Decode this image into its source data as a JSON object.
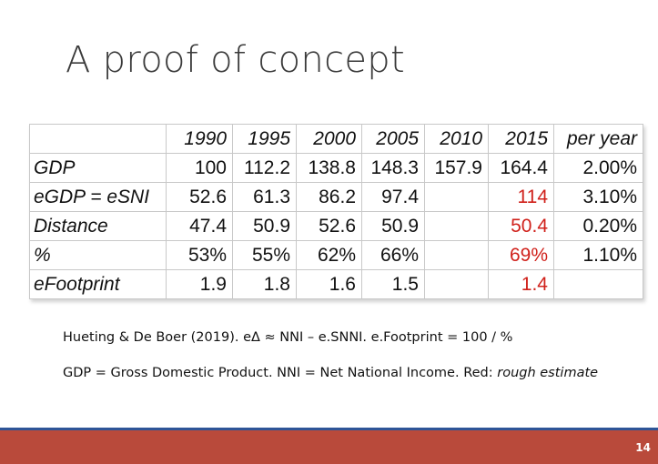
{
  "slide": {
    "title": "A proof of concept",
    "page_number": "14"
  },
  "table": {
    "header": [
      "",
      "1990",
      "1995",
      "2000",
      "2005",
      "2010",
      "2015",
      "per year"
    ],
    "rows": [
      {
        "label": "GDP",
        "cells": [
          "100",
          "112.2",
          "138.8",
          "148.3",
          "157.9",
          "164.4",
          "2.00%"
        ],
        "estimate": [
          false,
          false,
          false,
          false,
          false,
          false,
          false
        ]
      },
      {
        "label": "eGDP = eSNI",
        "cells": [
          "52.6",
          "61.3",
          "86.2",
          "97.4",
          "",
          "114",
          "3.10%"
        ],
        "estimate": [
          false,
          false,
          false,
          false,
          false,
          true,
          false
        ]
      },
      {
        "label": "Distance",
        "cells": [
          "47.4",
          "50.9",
          "52.6",
          "50.9",
          "",
          "50.4",
          "0.20%"
        ],
        "estimate": [
          false,
          false,
          false,
          false,
          false,
          true,
          false
        ]
      },
      {
        "label": "%",
        "cells": [
          "53%",
          "55%",
          "62%",
          "66%",
          "",
          "69%",
          "1.10%"
        ],
        "estimate": [
          false,
          false,
          false,
          false,
          false,
          true,
          false
        ]
      },
      {
        "label": "eFootprint",
        "cells": [
          "1.9",
          "1.8",
          "1.6",
          "1.5",
          "",
          "1.4",
          ""
        ],
        "estimate": [
          false,
          false,
          false,
          false,
          false,
          true,
          false
        ]
      }
    ]
  },
  "captions": {
    "line1": "Hueting & De Boer (2019). eΔ ≈ NNI – e.SNNI. e.Footprint = 100 / %",
    "line2_prefix": "GDP = Gross Domestic Product. NNI = Net National Income. Red: ",
    "line2_italic": "rough estimate"
  },
  "colors": {
    "estimate_red": "#d0211b",
    "footer_red": "#b94a3b",
    "footer_blue_line": "#2e5597"
  }
}
